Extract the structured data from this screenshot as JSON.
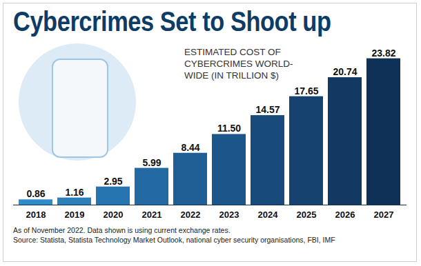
{
  "chart_data": {
    "type": "bar",
    "title": "Cybercrimes Set to Shoot up",
    "subtitle": "ESTIMATED COST OF CYBERCRIMES WORLD-WIDE (IN TRILLION $)",
    "notes": [
      "As of November 2022. Data shown is using current exchange rates.",
      "Source: Statista, Statista Technology Market Outlook, national cyber security organisations, FBI, IMF"
    ],
    "categories": [
      "2018",
      "2019",
      "2020",
      "2021",
      "2022",
      "2023",
      "2024",
      "2025",
      "2026",
      "2027"
    ],
    "values": [
      0.86,
      1.16,
      2.95,
      5.99,
      8.44,
      11.5,
      14.57,
      17.65,
      20.74,
      23.82
    ],
    "value_labels": [
      "0.86",
      "1.16",
      "2.95",
      "5.99",
      "8.44",
      "11.50",
      "14.57",
      "17.65",
      "20.74",
      "23.82"
    ],
    "colors": [
      "#2f8bc8",
      "#2b80bc",
      "#2775b0",
      "#236aa3",
      "#1f5f96",
      "#1b5589",
      "#184b7c",
      "#15426f",
      "#123962",
      "#0f3157"
    ],
    "ylim": [
      0,
      24
    ],
    "data_labels": true,
    "tick_labels": "x",
    "grid": false
  }
}
